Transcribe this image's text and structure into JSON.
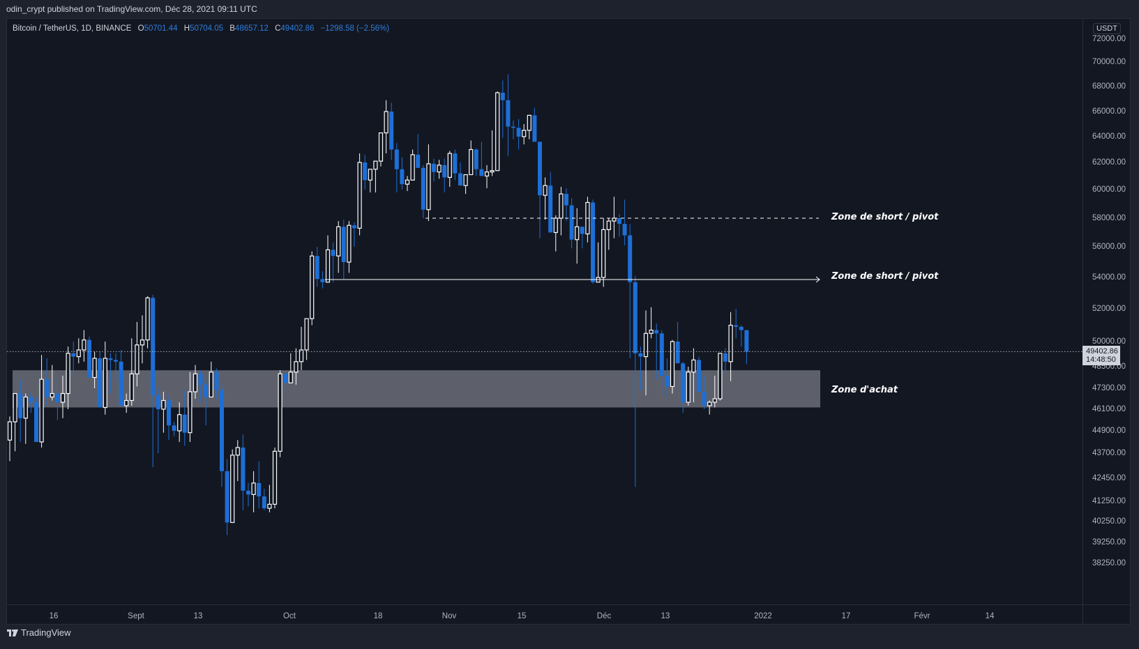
{
  "publish_bar": {
    "text": "odin_crypt published on TradingView.com, Déc 28, 2021 09:11 UTC"
  },
  "legend": {
    "symbol": "Bitcoin / TetherUS, 1D, BINANCE",
    "open_label": "O",
    "open": "50701.44",
    "high_label": "H",
    "high": "50704.05",
    "low_label": "B",
    "low": "48657.12",
    "close_label": "C",
    "close": "49402.86",
    "change": "−1298.58 (−2.56%)"
  },
  "currency_badge": "USDT",
  "last_price_tag": {
    "price": "49402.86",
    "countdown": "14:48:50"
  },
  "footer": {
    "brand": "TradingView"
  },
  "colors": {
    "background": "#131722",
    "up_candle": "#ffffff",
    "down_candle": "#1e6fd6",
    "zone_fill": "#5d606b",
    "annotation": "#ffffff"
  },
  "annotations": [
    {
      "label": "Zone de short / pivot",
      "price": 58000,
      "style": "dashed"
    },
    {
      "label": "Zone de short / pivot",
      "price": 54000,
      "style": "arrow"
    },
    {
      "label": "Zone d'achat",
      "price_top": 48300,
      "price_bottom": 46200,
      "style": "rectangle"
    }
  ],
  "chart_data": {
    "type": "candlestick",
    "title": "Bitcoin / TetherUS, 1D, BINANCE",
    "xlabel": "",
    "ylabel": "USDT",
    "ylim": [
      37800,
      73000
    ],
    "y_ticks": [
      "72000.00",
      "70000.00",
      "68000.00",
      "66000.00",
      "64000.00",
      "62000.00",
      "60000.00",
      "58000.00",
      "56000.00",
      "54000.00",
      "52000.00",
      "50000.00",
      "48500.00",
      "47300.00",
      "46100.00",
      "44900.00",
      "43700.00",
      "42450.00",
      "41250.00",
      "40250.00",
      "39250.00",
      "38250.00"
    ],
    "x_ticks": [
      {
        "label": "16",
        "x": 77
      },
      {
        "label": "Sept",
        "x": 195
      },
      {
        "label": "13",
        "x": 284
      },
      {
        "label": "Oct",
        "x": 415
      },
      {
        "label": "18",
        "x": 542
      },
      {
        "label": "Nov",
        "x": 644
      },
      {
        "label": "15",
        "x": 748
      },
      {
        "label": "Déc",
        "x": 866
      },
      {
        "label": "13",
        "x": 954
      },
      {
        "label": "2022",
        "x": 1094
      },
      {
        "label": "17",
        "x": 1213
      },
      {
        "label": "Févr",
        "x": 1322
      },
      {
        "label": "14",
        "x": 1419
      }
    ],
    "grid": false,
    "last_price": 49402.86,
    "candles_ohlc": [
      [
        44400,
        45700,
        43300,
        45400
      ],
      [
        45400,
        47000,
        43800,
        47000
      ],
      [
        47000,
        47800,
        44300,
        45600
      ],
      [
        45600,
        47000,
        44200,
        46800
      ],
      [
        46800,
        47100,
        45900,
        46500
      ],
      [
        46500,
        46800,
        44300,
        44300
      ],
      [
        44300,
        49200,
        44000,
        47800
      ],
      [
        47800,
        49000,
        46300,
        46800
      ],
      [
        46800,
        48600,
        46600,
        47000
      ],
      [
        47000,
        47900,
        45500,
        46500
      ],
      [
        46500,
        48000,
        45600,
        47000
      ],
      [
        47000,
        49700,
        46100,
        49300
      ],
      [
        49300,
        50000,
        48000,
        49100
      ],
      [
        49100,
        50200,
        48700,
        49500
      ],
      [
        49500,
        50700,
        48800,
        50100
      ],
      [
        50100,
        50300,
        48700,
        47900
      ],
      [
        47900,
        49400,
        47300,
        49000
      ],
      [
        49000,
        49400,
        46200,
        46200
      ],
      [
        46200,
        50000,
        45800,
        49000
      ],
      [
        49000,
        49300,
        47000,
        48900
      ],
      [
        48900,
        49300,
        47700,
        48800
      ],
      [
        48800,
        49500,
        46500,
        46300
      ],
      [
        46300,
        47000,
        45900,
        46600
      ],
      [
        46600,
        50200,
        46300,
        48100
      ],
      [
        48100,
        51200,
        47400,
        49800
      ],
      [
        49800,
        51600,
        48700,
        50100
      ],
      [
        50100,
        52800,
        49600,
        52700
      ],
      [
        52700,
        52900,
        43000,
        46900
      ],
      [
        46900,
        47300,
        43700,
        46100
      ],
      [
        46100,
        47100,
        44800,
        46600
      ],
      [
        46600,
        46900,
        44400,
        45200
      ],
      [
        45200,
        45400,
        44600,
        44900
      ],
      [
        44900,
        46500,
        44300,
        45800
      ],
      [
        45800,
        47200,
        44100,
        44800
      ],
      [
        44800,
        48200,
        44300,
        47100
      ],
      [
        47100,
        48600,
        46700,
        48100
      ],
      [
        48100,
        48300,
        46500,
        47500
      ],
      [
        47500,
        47800,
        45200,
        46800
      ],
      [
        46800,
        48800,
        47100,
        48200
      ],
      [
        48200,
        48400,
        46700,
        47200
      ],
      [
        47200,
        47500,
        42000,
        42800
      ],
      [
        42800,
        43400,
        39600,
        40200
      ],
      [
        40200,
        43900,
        40300,
        43600
      ],
      [
        43600,
        44400,
        42300,
        44000
      ],
      [
        44000,
        44700,
        40800,
        41800
      ],
      [
        41800,
        42200,
        41000,
        41600
      ],
      [
        41600,
        42800,
        40700,
        42200
      ],
      [
        42200,
        43300,
        40900,
        41500
      ],
      [
        41500,
        41900,
        40800,
        40900
      ],
      [
        40900,
        42100,
        40700,
        41100
      ],
      [
        41100,
        44000,
        40900,
        43800
      ],
      [
        43800,
        48300,
        43500,
        48100
      ],
      [
        48100,
        48300,
        47200,
        47600
      ],
      [
        47600,
        49300,
        47700,
        48200
      ],
      [
        48200,
        49600,
        47500,
        48800
      ],
      [
        48800,
        50900,
        48300,
        49500
      ],
      [
        49500,
        51200,
        48900,
        51400
      ],
      [
        51400,
        55700,
        51000,
        55400
      ],
      [
        55400,
        56000,
        53400,
        53900
      ],
      [
        53900,
        54400,
        53300,
        53700
      ],
      [
        53700,
        56800,
        53800,
        55800
      ],
      [
        55800,
        56300,
        53700,
        55400
      ],
      [
        55400,
        57800,
        54300,
        57400
      ],
      [
        57400,
        57900,
        53900,
        55000
      ],
      [
        55000,
        57800,
        54300,
        57500
      ],
      [
        57500,
        57700,
        56000,
        57300
      ],
      [
        57300,
        62700,
        56800,
        62000
      ],
      [
        62000,
        62600,
        60000,
        60700
      ],
      [
        60700,
        61000,
        59800,
        61500
      ],
      [
        61500,
        62100,
        59800,
        62100
      ],
      [
        62100,
        64200,
        61700,
        64300
      ],
      [
        64300,
        66900,
        62700,
        66000
      ],
      [
        66000,
        66700,
        62200,
        63000
      ],
      [
        63000,
        63500,
        59800,
        61500
      ],
      [
        61500,
        62400,
        60000,
        60400
      ],
      [
        60400,
        61000,
        59900,
        60700
      ],
      [
        60700,
        63000,
        61000,
        62600
      ],
      [
        62600,
        64200,
        62200,
        61600
      ],
      [
        61600,
        61800,
        58000,
        58600
      ],
      [
        58600,
        63400,
        57800,
        61900
      ],
      [
        61900,
        62300,
        60600,
        61300
      ],
      [
        61300,
        62200,
        60800,
        61800
      ],
      [
        61800,
        62300,
        59800,
        60900
      ],
      [
        60900,
        62900,
        60200,
        62700
      ],
      [
        62700,
        63000,
        60700,
        61200
      ],
      [
        61200,
        62000,
        60300,
        60300
      ],
      [
        60300,
        61100,
        59700,
        61100
      ],
      [
        61100,
        63700,
        61200,
        63000
      ],
      [
        63000,
        63100,
        61000,
        61500
      ],
      [
        61500,
        63600,
        61300,
        61000
      ],
      [
        61000,
        61800,
        60100,
        61300
      ],
      [
        61300,
        64500,
        61000,
        61400
      ],
      [
        61400,
        67600,
        66400,
        67500
      ],
      [
        67500,
        68500,
        63900,
        66900
      ],
      [
        66900,
        69000,
        62500,
        64800
      ],
      [
        64800,
        65300,
        63800,
        64700
      ],
      [
        64700,
        65400,
        63000,
        64000
      ],
      [
        64000,
        65000,
        63400,
        64500
      ],
      [
        64500,
        65600,
        63800,
        65700
      ],
      [
        65700,
        66300,
        63700,
        63600
      ],
      [
        63600,
        60800,
        56600,
        59600
      ],
      [
        59600,
        60900,
        57900,
        60300
      ],
      [
        60300,
        61300,
        57400,
        57000
      ],
      [
        57000,
        58200,
        55700,
        58000
      ],
      [
        58000,
        60200,
        56800,
        59700
      ],
      [
        59700,
        60100,
        57800,
        58900
      ],
      [
        58900,
        59400,
        55900,
        56500
      ],
      [
        56500,
        58700,
        54900,
        57400
      ],
      [
        57400,
        57300,
        55900,
        56900
      ],
      [
        56900,
        59500,
        56300,
        59100
      ],
      [
        59100,
        59300,
        53600,
        53700
      ],
      [
        53700,
        56300,
        53900,
        54000
      ],
      [
        54000,
        58000,
        53400,
        57200
      ],
      [
        57200,
        58000,
        55800,
        57800
      ],
      [
        57800,
        59500,
        56600,
        58000
      ],
      [
        58000,
        58300,
        56700,
        57600
      ],
      [
        57600,
        59300,
        56100,
        56800
      ],
      [
        56800,
        57600,
        49000,
        53700
      ],
      [
        53700,
        54100,
        42000,
        49300
      ],
      [
        49300,
        49700,
        47200,
        49100
      ],
      [
        49100,
        51900,
        46900,
        50500
      ],
      [
        50500,
        52100,
        50200,
        50700
      ],
      [
        50700,
        51100,
        47800,
        50500
      ],
      [
        50500,
        50700,
        46900,
        48000
      ],
      [
        48000,
        49000,
        46700,
        47400
      ],
      [
        47400,
        50100,
        47000,
        50000
      ],
      [
        50000,
        51200,
        48900,
        48700
      ],
      [
        48700,
        48800,
        45900,
        46500
      ],
      [
        46500,
        48500,
        46300,
        48200
      ],
      [
        48200,
        49600,
        46500,
        48900
      ],
      [
        48900,
        49100,
        47500,
        47100
      ],
      [
        47100,
        48000,
        46100,
        46300
      ],
      [
        46300,
        46600,
        45800,
        46500
      ],
      [
        46500,
        48000,
        46200,
        46700
      ],
      [
        46700,
        49200,
        46600,
        49300
      ],
      [
        49300,
        49600,
        48100,
        48800
      ],
      [
        48800,
        51800,
        47700,
        51000
      ],
      [
        51000,
        52000,
        50200,
        50900
      ],
      [
        50900,
        51000,
        49700,
        50700
      ],
      [
        50700,
        50704,
        48657,
        49402.86
      ]
    ]
  }
}
